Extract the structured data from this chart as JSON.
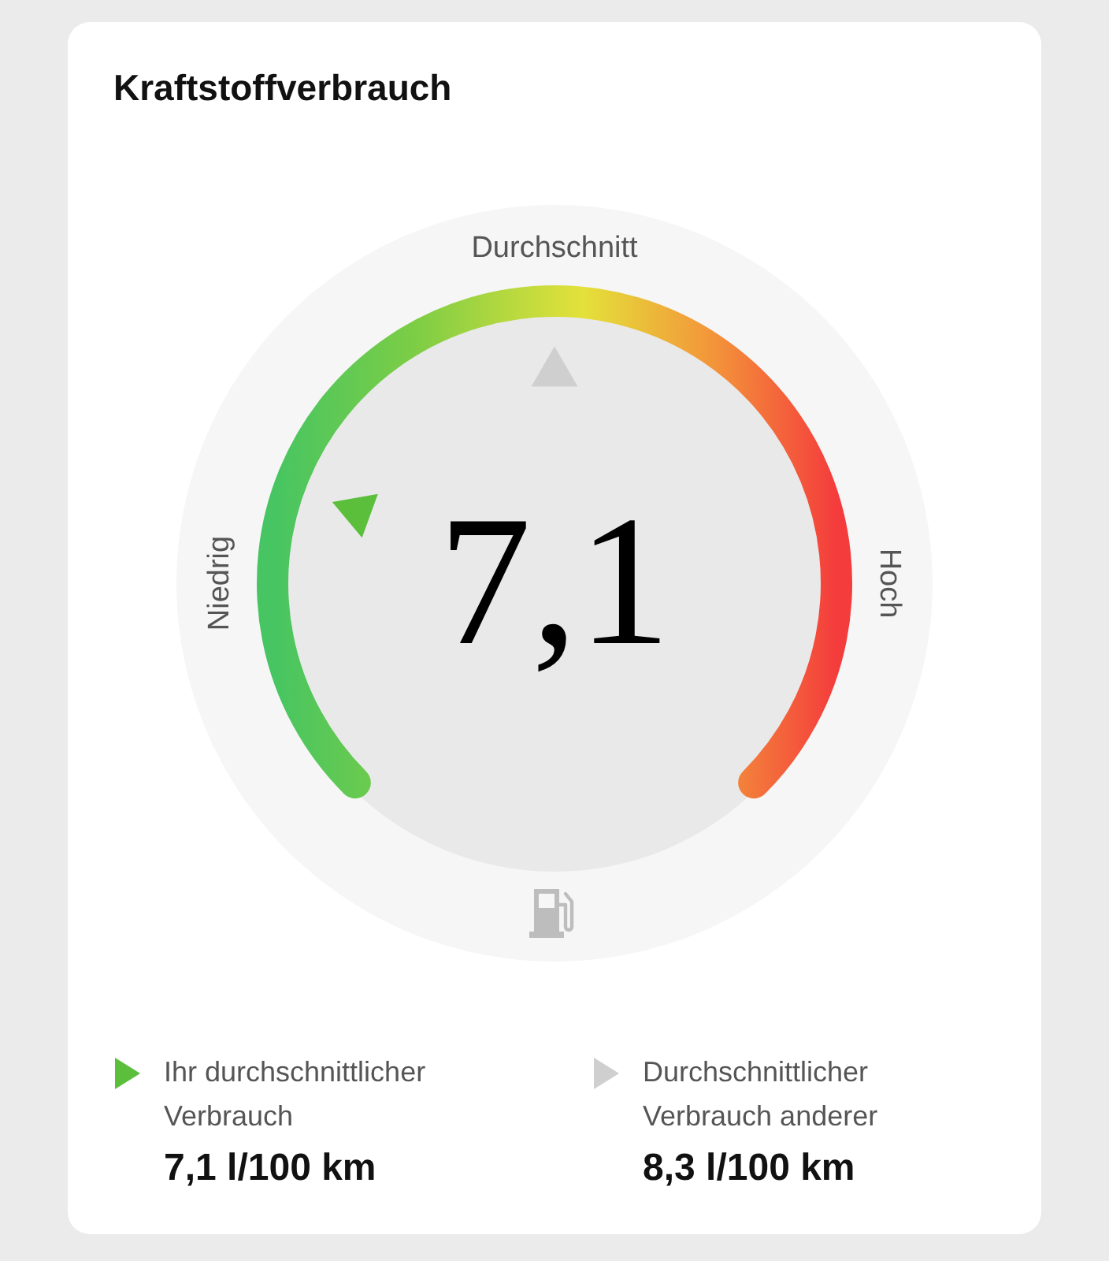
{
  "chart_data": {
    "type": "other",
    "title": "Kraftstoffverbrauch",
    "series": [
      {
        "name": "Ihr durchschnittlicher Verbrauch",
        "color": "#5cbf3c",
        "values": [
          7.1
        ],
        "value_labels": [
          "7,1 l/100 km"
        ]
      },
      {
        "name": "Durchschnittlicher Verbrauch anderer",
        "color": "#cfcfcf",
        "values": [
          8.3
        ],
        "value_labels": [
          "8,3 l/100 km"
        ]
      }
    ],
    "annotations": [
      "Niedrig",
      "Durchschnitt",
      "Hoch",
      "7,1"
    ],
    "legend": "bottom"
  }
}
